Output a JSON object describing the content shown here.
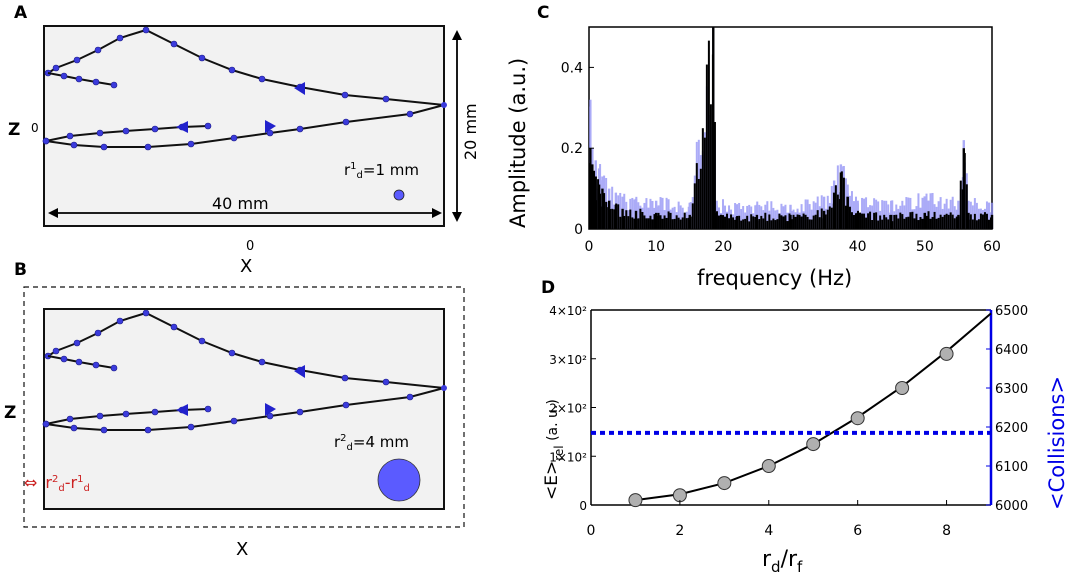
{
  "panels": {
    "a": {
      "letter": "A",
      "zlabel": "Z",
      "zero_label": "0",
      "x_tick": "0",
      "xlabel": "X",
      "width_label": "40 mm",
      "height_label": "20 mm",
      "radius_label_base": "r",
      "radius_label_sup": "1",
      "radius_label_sub": "d",
      "radius_label_rest": "=1 mm"
    },
    "b": {
      "letter": "B",
      "zlabel": "Z",
      "xlabel": "X",
      "radius_label_base": "r",
      "radius_label_sup": "2",
      "radius_label_sub": "d",
      "radius_label_rest": "=4 mm",
      "diff_arrow": "⇔",
      "diff_r1": "r",
      "diff_sup1": "2",
      "diff_sub1": "d",
      "diff_mid": "-r",
      "diff_sup2": "1",
      "diff_sub2": "d"
    },
    "c": {
      "letter": "C"
    },
    "d": {
      "letter": "D"
    }
  },
  "colors": {
    "trajectory": "#111111",
    "marker": "#3b3bdc",
    "droplet": "#5b5bff",
    "spectrum_dark": "#000000",
    "spectrum_light": "#8f8ff5",
    "collisions": "#0000e6",
    "diff_label": "#cc2222",
    "box_bg": "#f2f2f2"
  },
  "chart_data": [
    {
      "type": "bar",
      "panel": "C",
      "title": "",
      "xlabel": "frequency (Hz)",
      "ylabel": "Amplitude (a.u.)",
      "xlim": [
        0,
        60
      ],
      "ylim": [
        0,
        0.5
      ],
      "x_ticks": [
        "0",
        "10",
        "20",
        "30",
        "40",
        "50",
        "60"
      ],
      "y_ticks": [
        "0",
        "0.2",
        "0.4"
      ],
      "series": [
        {
          "name": "r_d = 1 mm",
          "color": "dark",
          "x": [
            0.2,
            0.5,
            1,
            1.5,
            2,
            3,
            4,
            5,
            7,
            10,
            15,
            18.5,
            19,
            22,
            25,
            30,
            35,
            36.5,
            37.5,
            38.5,
            40,
            45,
            50,
            55,
            55.8,
            56.5,
            60
          ],
          "values": [
            0.2,
            0.16,
            0.13,
            0.11,
            0.1,
            0.07,
            0.06,
            0.05,
            0.045,
            0.04,
            0.035,
            0.5,
            0.04,
            0.03,
            0.035,
            0.035,
            0.045,
            0.09,
            0.14,
            0.08,
            0.04,
            0.035,
            0.04,
            0.035,
            0.2,
            0.04,
            0.035
          ]
        },
        {
          "name": "r_d = 4 mm",
          "color": "light",
          "x": [
            0.2,
            0.5,
            1,
            1.5,
            2,
            3,
            4,
            5,
            7,
            10,
            15,
            18.5,
            19,
            22,
            25,
            30,
            35,
            36.5,
            37.5,
            38.5,
            40,
            45,
            50,
            55,
            55.8,
            56.5,
            60
          ],
          "values": [
            0.32,
            0.2,
            0.17,
            0.15,
            0.13,
            0.1,
            0.09,
            0.08,
            0.075,
            0.07,
            0.065,
            0.5,
            0.07,
            0.06,
            0.06,
            0.06,
            0.08,
            0.12,
            0.16,
            0.11,
            0.07,
            0.07,
            0.08,
            0.07,
            0.22,
            0.07,
            0.065
          ]
        }
      ]
    },
    {
      "type": "line",
      "panel": "D",
      "title": "",
      "xlabel_base": "r",
      "xlabel_sub": "d",
      "xlabel_mid": "/r",
      "xlabel_sub2": "f",
      "ylabel": "<E>rel (a. u.)",
      "ylabel_left": "<E>",
      "ylabel_left_sub": "rel",
      "ylabel_left_rest": " (a. u.)",
      "y2label": "<Collisions>",
      "xlim": [
        0,
        9
      ],
      "ylim": [
        0,
        400
      ],
      "y2lim": [
        6000,
        6500
      ],
      "x_ticks": [
        "0",
        "2",
        "4",
        "6",
        "8"
      ],
      "y_ticks": [
        "0",
        "1×10²",
        "2×10²",
        "3×10²",
        "4×10²"
      ],
      "y2_ticks": [
        "6000",
        "6100",
        "6200",
        "6300",
        "6400",
        "6500"
      ],
      "series": [
        {
          "name": "<E>rel",
          "x": [
            1,
            2,
            3,
            4,
            5,
            6,
            7,
            8
          ],
          "values": [
            10,
            20,
            45,
            80,
            125,
            178,
            240,
            310
          ]
        },
        {
          "name": "<Collisions>",
          "x": [
            0,
            9
          ],
          "values": [
            6185,
            6185
          ]
        }
      ],
      "fit_curve": {
        "x": [
          1,
          2,
          3,
          4,
          5,
          6,
          7,
          8,
          9
        ],
        "values": [
          10,
          22,
          45,
          80,
          125,
          180,
          243,
          315,
          393
        ]
      }
    }
  ]
}
